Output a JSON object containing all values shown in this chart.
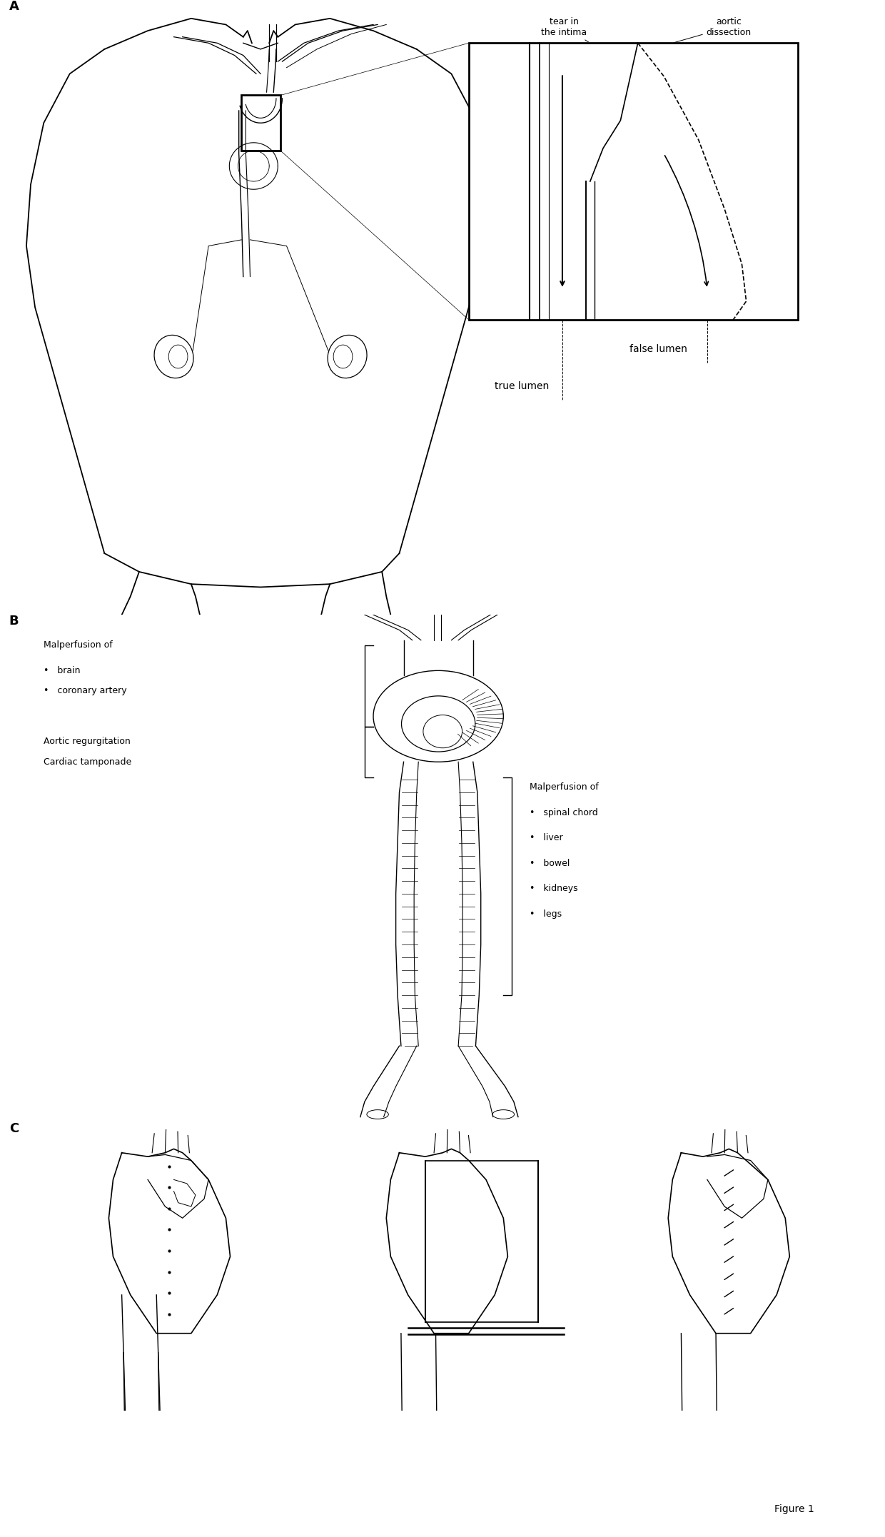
{
  "bg_color": "#ffffff",
  "label_A": "A",
  "label_B": "B",
  "label_C": "C",
  "fig_label": "Figure 1",
  "panel_A_labels": {
    "tear_in": "tear in\nthe intima",
    "aortic": "aortic\ndissection",
    "false_lumen": "false lumen",
    "true_lumen": "true lumen"
  },
  "panel_B_left": [
    "Malperfusion of",
    "•   brain",
    "•   coronary artery",
    "",
    "Aortic regurgitation",
    "Cardiac tamponade"
  ],
  "panel_B_right": [
    "Malperfusion of",
    "•   spinal chord",
    "•   liver",
    "•   bowel",
    "•   kidneys",
    "•   legs"
  ],
  "lc": "#000000",
  "lw": 1.0,
  "fs": 9,
  "fs_label": 13
}
